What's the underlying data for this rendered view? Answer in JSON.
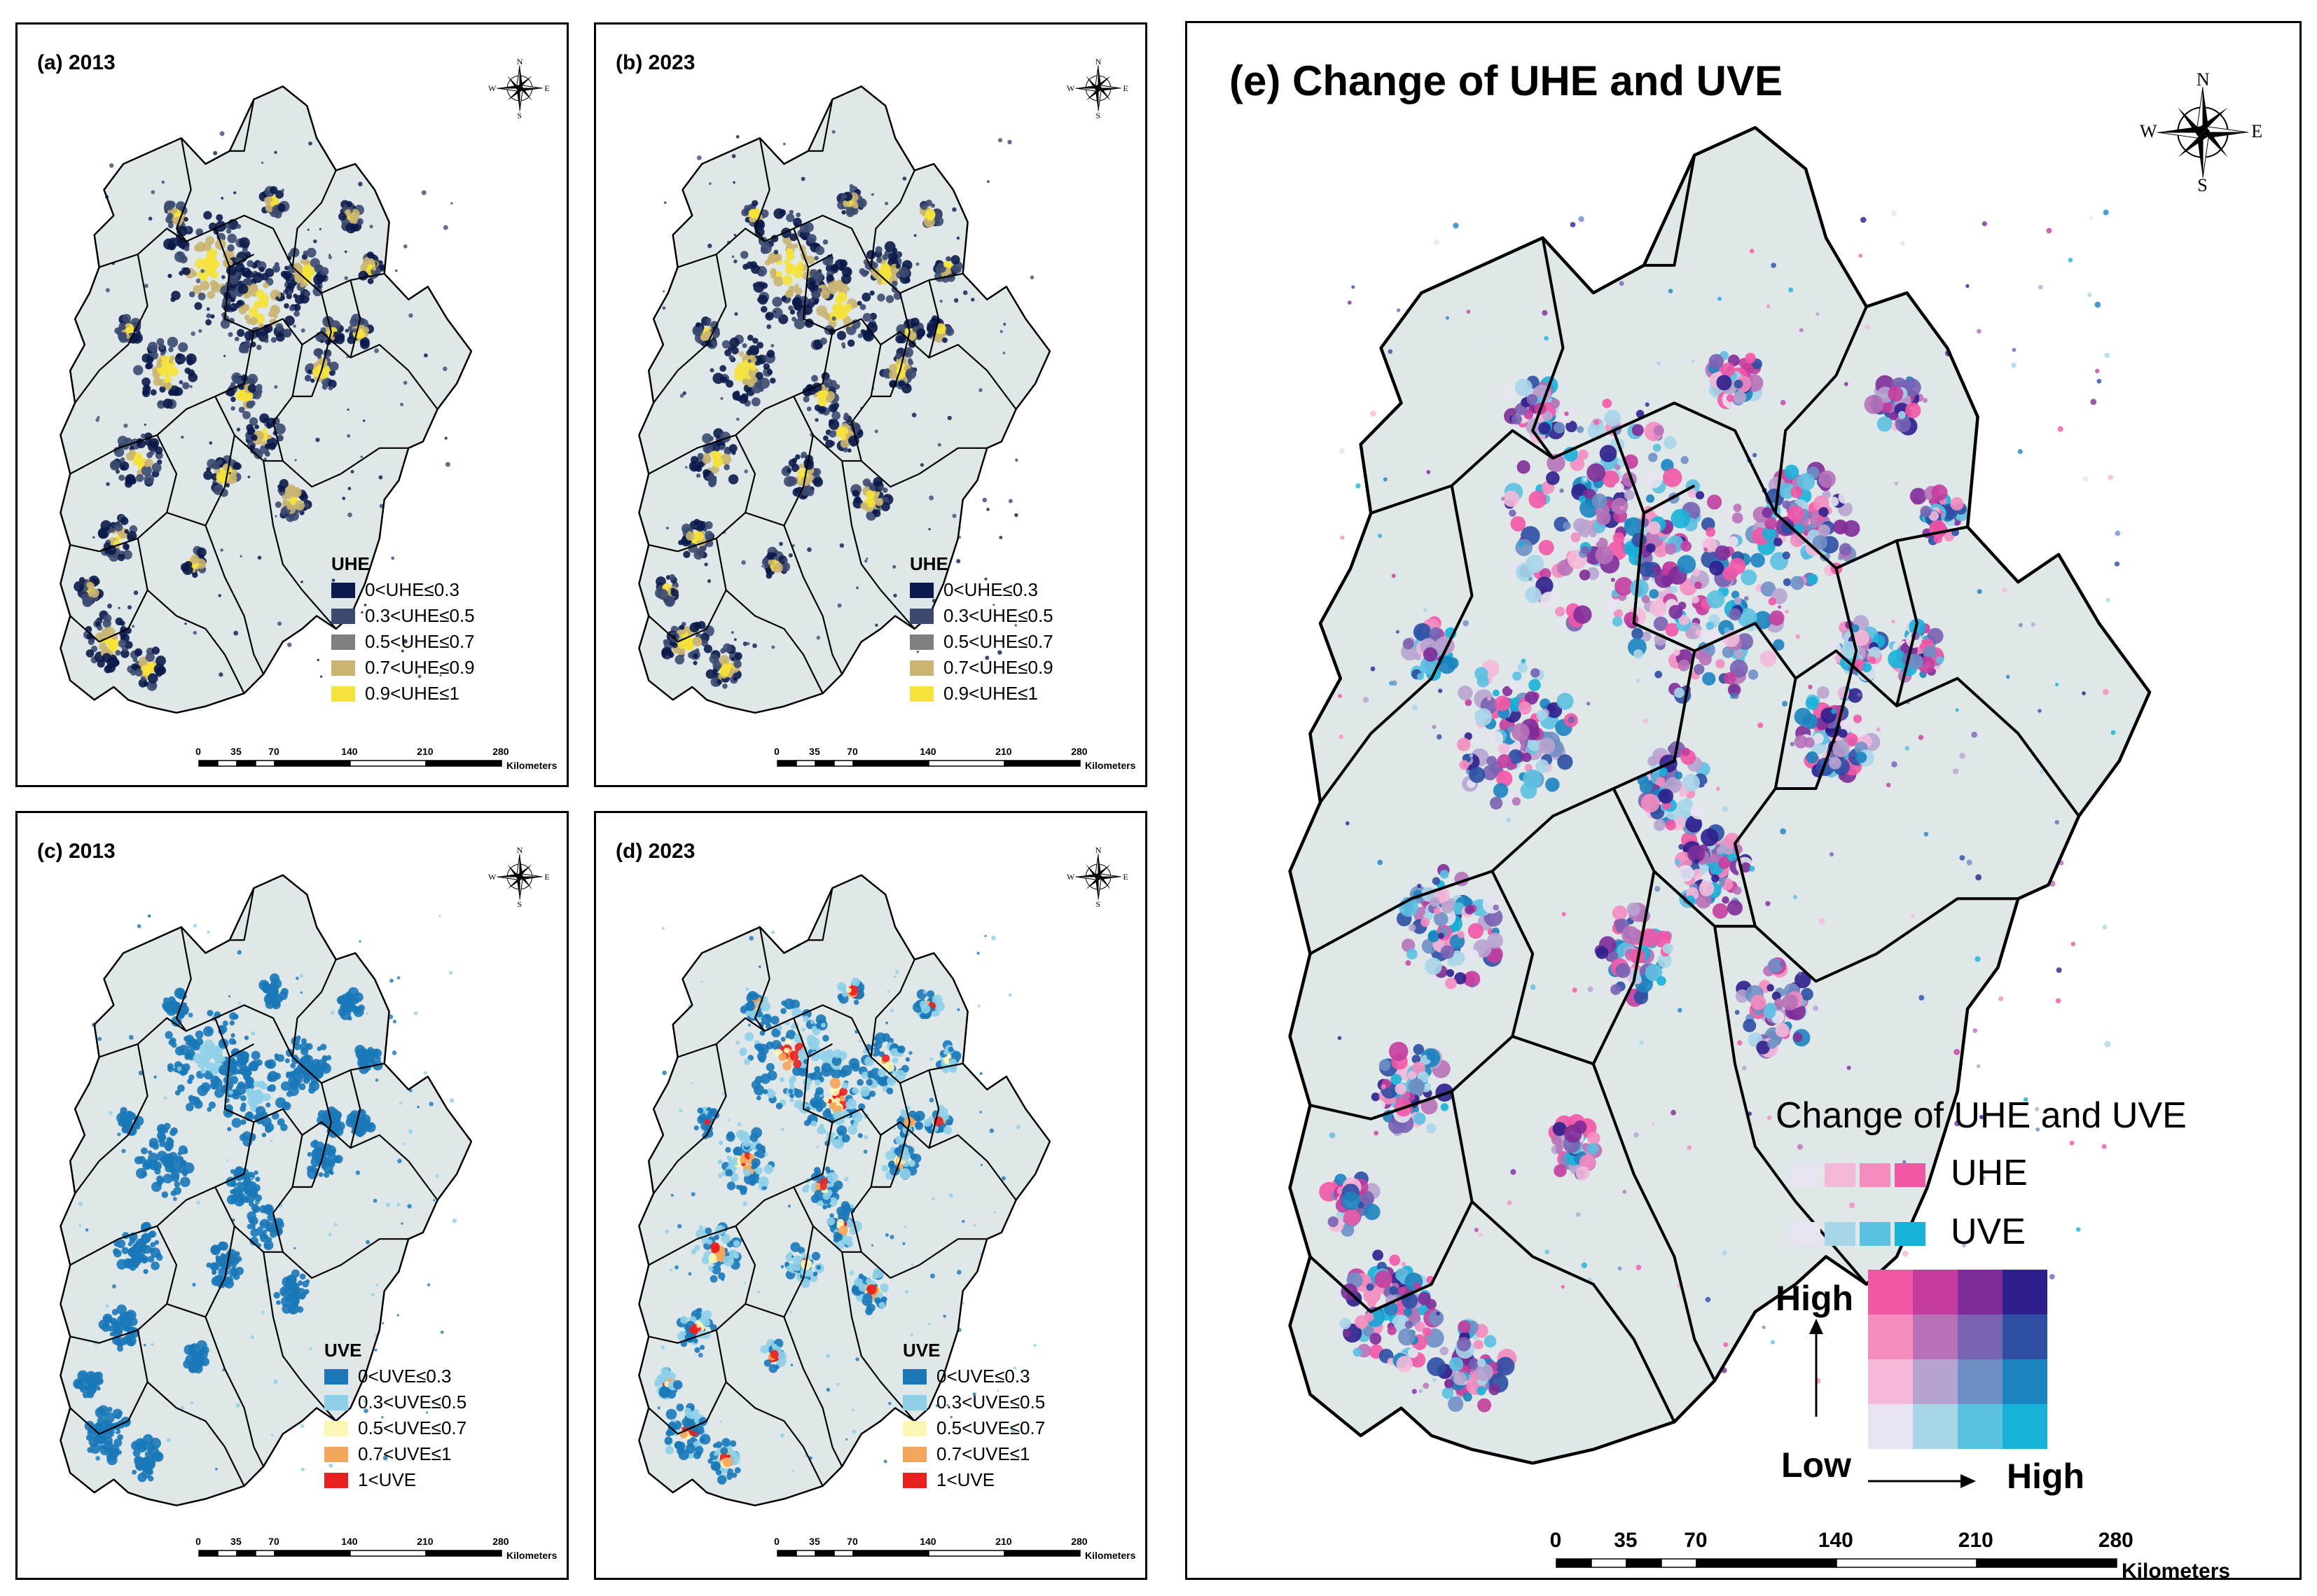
{
  "panels": {
    "a": {
      "title": "(a) 2013",
      "legend_title": "UHE",
      "legend": [
        {
          "label": "0<UHE≤0.3",
          "color": "#0b1a4a"
        },
        {
          "label": "0.3<UHE≤0.5",
          "color": "#3c4a70"
        },
        {
          "label": "0.5<UHE≤0.7",
          "color": "#7f7f7f"
        },
        {
          "label": "0.7<UHE≤0.9",
          "color": "#c9b471"
        },
        {
          "label": "0.9<UHE≤1",
          "color": "#f5e23a"
        }
      ]
    },
    "b": {
      "title": "(b) 2023",
      "legend_title": "UHE",
      "legend": [
        {
          "label": "0<UHE≤0.3",
          "color": "#0b1a4a"
        },
        {
          "label": "0.3<UHE≤0.5",
          "color": "#3c4a70"
        },
        {
          "label": "0.5<UHE≤0.7",
          "color": "#7f7f7f"
        },
        {
          "label": "0.7<UHE≤0.9",
          "color": "#c9b471"
        },
        {
          "label": "0.9<UHE≤1",
          "color": "#f5e23a"
        }
      ]
    },
    "c": {
      "title": "(c) 2013",
      "legend_title": "UVE",
      "legend": [
        {
          "label": "0<UVE≤0.3",
          "color": "#1a78b8"
        },
        {
          "label": "0.3<UVE≤0.5",
          "color": "#8fd0e8"
        },
        {
          "label": "0.5<UVE≤0.7",
          "color": "#fdf7b6"
        },
        {
          "label": "0.7<UVE≤1",
          "color": "#f5a55a"
        },
        {
          "label": "1<UVE",
          "color": "#e8201e"
        }
      ]
    },
    "d": {
      "title": "(d) 2023",
      "legend_title": "UVE",
      "legend": [
        {
          "label": "0<UVE≤0.3",
          "color": "#1a78b8"
        },
        {
          "label": "0.3<UVE≤0.5",
          "color": "#8fd0e8"
        },
        {
          "label": "0.5<UVE≤0.7",
          "color": "#fdf7b6"
        },
        {
          "label": "0.7<UVE≤1",
          "color": "#f5a55a"
        },
        {
          "label": "1<UVE",
          "color": "#e8201e"
        }
      ]
    },
    "e": {
      "title": "(e) Change of UHE and UVE",
      "legend_title": "Change of UHE and UVE",
      "uhe_label": "UHE",
      "uve_label": "UVE",
      "uhe_ramp": [
        "#e7e3f0",
        "#f4b9d9",
        "#f48cc0",
        "#f257a6"
      ],
      "uve_ramp": [
        "#e7e3f0",
        "#a8d6e9",
        "#5cc0e1",
        "#18b1d8"
      ],
      "matrix": [
        [
          "#f257a6",
          "#c43d9e",
          "#7e2c98",
          "#2d1f8c"
        ],
        [
          "#f48cc0",
          "#b871b8",
          "#7862b2",
          "#2c4ea3"
        ],
        [
          "#f4b9d9",
          "#b7a3cf",
          "#6f8fc4",
          "#1b83be"
        ],
        [
          "#e7e3f0",
          "#a8d6e9",
          "#5cc0e1",
          "#18b1d8"
        ]
      ],
      "axis_high_y": "High",
      "axis_low": "Low",
      "axis_high_x": "High"
    }
  },
  "compass": {
    "n": "N",
    "s": "S",
    "e": "E",
    "w": "W"
  },
  "scale": {
    "ticks": [
      "0",
      "35",
      "70",
      "140",
      "210",
      "280"
    ],
    "unit": "Kilometers"
  },
  "colors": {
    "land": "#dfe7e9",
    "boundary": "#000000"
  }
}
